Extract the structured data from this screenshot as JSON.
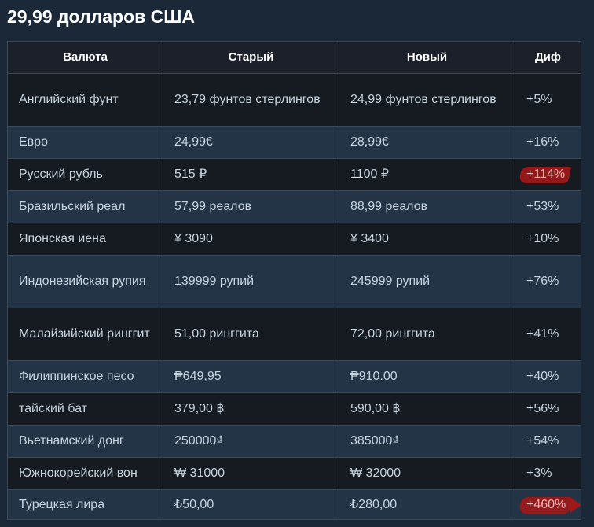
{
  "page": {
    "title": "29,99 долларов США"
  },
  "table": {
    "headers": {
      "currency": "Валюта",
      "old": "Старый",
      "new": "Новый",
      "diff": "Диф"
    },
    "rows": [
      {
        "currency": "Английский фунт",
        "old": "23,79 фунтов стерлингов",
        "new": "24,99 фунтов стерлингов",
        "diff": "+5%"
      },
      {
        "currency": "Евро",
        "old": "24,99€",
        "new": "28,99€",
        "diff": "+16%"
      },
      {
        "currency": "Русский рубль",
        "old": "515 ₽",
        "new": "1100 ₽",
        "diff": "+114%",
        "highlighted": true
      },
      {
        "currency": "Бразильский реал",
        "old": "57,99 реалов",
        "new": "88,99 реалов",
        "diff": "+53%"
      },
      {
        "currency": "Японская иена",
        "old": "¥ 3090",
        "new": "¥ 3400",
        "diff": "+10%"
      },
      {
        "currency": "Индонезийская рупия",
        "old": "139999 рупий",
        "new": "245999 рупий",
        "diff": "+76%"
      },
      {
        "currency": "Малайзийский ринггит",
        "old": "51,00 ринггита",
        "new": "72,00 ринггита",
        "diff": "+41%"
      },
      {
        "currency": "Филиппинское песо",
        "old": "₱649,95",
        "new": "₱910.00",
        "diff": "+40%"
      },
      {
        "currency": "тайский бат",
        "old": "379,00 ฿",
        "new": "590,00 ฿",
        "diff": "+56%"
      },
      {
        "currency": "Вьетнамский донг",
        "old": "250000₫",
        "new": "385000₫",
        "diff": "+54%"
      },
      {
        "currency": "Южнокорейский вон",
        "old": "₩ 31000",
        "new": "₩ 32000",
        "diff": "+3%"
      },
      {
        "currency": "Турецкая лира",
        "old": "₺50,00",
        "new": "₺280,00",
        "diff": "+460%",
        "highlighted": true
      }
    ]
  },
  "colors": {
    "background": "#1b2838",
    "row_dark": "#161a21",
    "row_light": "#243447",
    "highlight_red": "#a01818"
  }
}
